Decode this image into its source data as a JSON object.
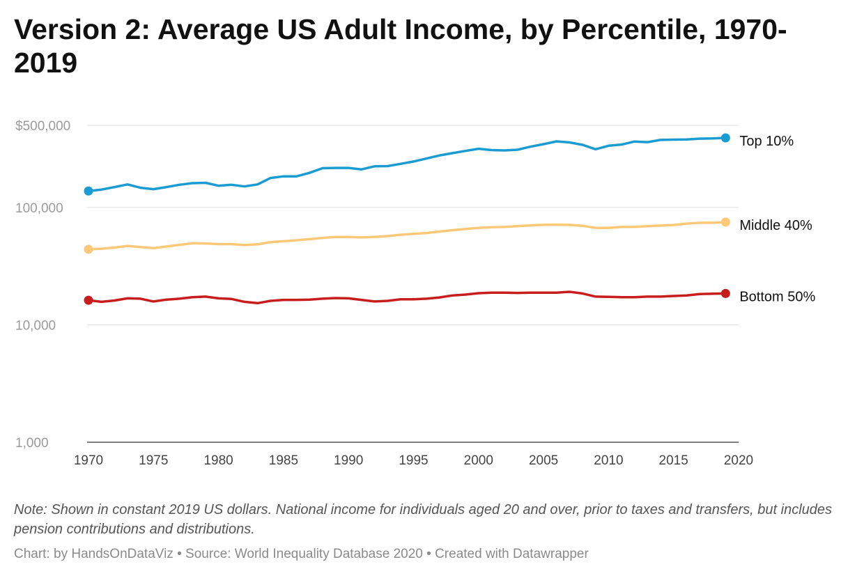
{
  "title": "Version 2: Average US Adult Income, by Percentile, 1970-2019",
  "note": "Note: Shown in constant 2019 US dollars. National income for individuals aged 20 and over, prior to taxes and transfers, but includes pension contributions and distributions.",
  "credit": {
    "chart": "Chart: by HandsOnDataViz",
    "source": "Source: World Inequality Database 2020",
    "tool": "Created with Datawrapper",
    "separator": " • "
  },
  "chart_data": {
    "type": "line",
    "title": "Version 2: Average US Adult Income, by Percentile, 1970-2019",
    "xlabel": "",
    "ylabel": "",
    "y_scale": "log",
    "xlim": [
      1970,
      2020
    ],
    "ylim": [
      1000,
      500000
    ],
    "grid": true,
    "x_ticks": [
      1970,
      1975,
      1980,
      1985,
      1990,
      1995,
      2000,
      2005,
      2010,
      2015,
      2020
    ],
    "x_tick_labels": [
      "1970",
      "1975",
      "1980",
      "1985",
      "1990",
      "1995",
      "2000",
      "2005",
      "2010",
      "2015",
      "2020"
    ],
    "y_ticks": [
      1000,
      10000,
      100000,
      500000
    ],
    "y_tick_labels": [
      "1,000",
      "10,000",
      "100,000",
      "$500,000"
    ],
    "x": [
      1970,
      1971,
      1972,
      1973,
      1974,
      1975,
      1976,
      1977,
      1978,
      1979,
      1980,
      1981,
      1982,
      1983,
      1984,
      1985,
      1986,
      1987,
      1988,
      1989,
      1990,
      1991,
      1992,
      1993,
      1994,
      1995,
      1996,
      1997,
      1998,
      1999,
      2000,
      2001,
      2002,
      2003,
      2004,
      2005,
      2006,
      2007,
      2008,
      2009,
      2010,
      2011,
      2012,
      2013,
      2014,
      2015,
      2016,
      2017,
      2018,
      2019
    ],
    "series": [
      {
        "name": "Top 10%",
        "color": "#1a9bd1",
        "values": [
          138000,
          142000,
          149000,
          157000,
          147000,
          143000,
          149000,
          156000,
          161000,
          162000,
          153000,
          156000,
          151000,
          157000,
          178000,
          184000,
          184000,
          197000,
          216000,
          217000,
          217000,
          211000,
          224000,
          225000,
          235000,
          246000,
          261000,
          277000,
          290000,
          303000,
          316000,
          308000,
          306000,
          310000,
          329000,
          346000,
          365000,
          358000,
          341000,
          313000,
          335000,
          343000,
          364000,
          360000,
          376000,
          378000,
          379000,
          385000,
          387000,
          391000
        ]
      },
      {
        "name": "Middle 40%",
        "color": "#fdc878",
        "values": [
          44000,
          44500,
          45500,
          47000,
          46000,
          45000,
          46500,
          48000,
          49500,
          49300,
          48700,
          48700,
          47800,
          48500,
          50700,
          51500,
          52500,
          53700,
          55000,
          56000,
          56000,
          55500,
          56000,
          57000,
          58500,
          59500,
          60500,
          62300,
          64000,
          65500,
          67000,
          67800,
          68200,
          69300,
          70300,
          71000,
          71300,
          71000,
          69800,
          67000,
          67000,
          68200,
          68300,
          69300,
          70000,
          70800,
          72800,
          74000,
          74000,
          75000
        ]
      },
      {
        "name": "Bottom 50%",
        "color": "#c71e1d",
        "values": [
          16200,
          15700,
          16100,
          16800,
          16700,
          15800,
          16400,
          16700,
          17200,
          17400,
          16800,
          16600,
          15700,
          15300,
          16000,
          16300,
          16300,
          16400,
          16700,
          16900,
          16800,
          16300,
          15800,
          16000,
          16500,
          16500,
          16700,
          17100,
          17800,
          18100,
          18600,
          18800,
          18800,
          18700,
          18800,
          18800,
          18800,
          19100,
          18500,
          17400,
          17300,
          17200,
          17200,
          17400,
          17400,
          17600,
          17800,
          18300,
          18400,
          18500
        ]
      }
    ]
  }
}
